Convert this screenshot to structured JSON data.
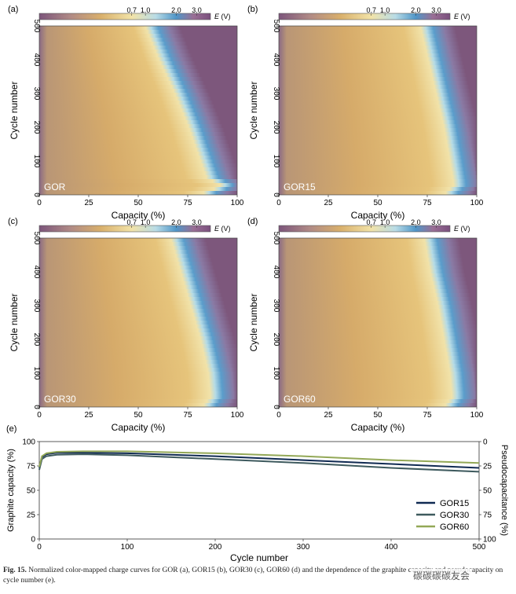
{
  "colormap": {
    "stops": [
      "#7c557b",
      "#b08a86",
      "#d9b06c",
      "#f2e3a8",
      "#b9dce6",
      "#4f96c8",
      "#9a6f95",
      "#7a4f7d"
    ],
    "tick_labels": [
      "0.7",
      "1.0",
      "2.0",
      "3.0"
    ],
    "label_var": "E",
    "label_unit": " (V)"
  },
  "chart_data": [
    {
      "id": "a",
      "type": "heatmap",
      "panel_label": "(a)",
      "tag": "GOR",
      "xlabel": "Capacity (%)",
      "ylabel": "Cycle number",
      "xlim": [
        0,
        100
      ],
      "ylim": [
        0,
        500
      ],
      "xticks": [
        "0",
        "25",
        "50",
        "75",
        "100"
      ],
      "yticks": [
        "0",
        "100",
        "200",
        "300",
        "400",
        "500"
      ],
      "capacity_vs_cycle": [
        [
          0,
          80
        ],
        [
          10,
          88
        ],
        [
          30,
          93
        ],
        [
          50,
          86
        ],
        [
          100,
          83
        ],
        [
          200,
          77
        ],
        [
          300,
          70
        ],
        [
          400,
          62
        ],
        [
          500,
          55
        ]
      ]
    },
    {
      "id": "b",
      "type": "heatmap",
      "panel_label": "(b)",
      "tag": "GOR15",
      "xlabel": "Capacity (%)",
      "ylabel": "Cycle number",
      "xlim": [
        0,
        100
      ],
      "ylim": [
        0,
        500
      ],
      "xticks": [
        "0",
        "25",
        "50",
        "75",
        "100"
      ],
      "yticks": [
        "0",
        "100",
        "200",
        "300",
        "400",
        "500"
      ],
      "capacity_vs_cycle": [
        [
          0,
          85
        ],
        [
          30,
          90
        ],
        [
          100,
          88
        ],
        [
          200,
          85
        ],
        [
          300,
          81
        ],
        [
          400,
          77
        ],
        [
          500,
          73
        ]
      ]
    },
    {
      "id": "c",
      "type": "heatmap",
      "panel_label": "(c)",
      "tag": "GOR30",
      "xlabel": "Capacity (%)",
      "ylabel": "Cycle number",
      "xlim": [
        0,
        100
      ],
      "ylim": [
        0,
        500
      ],
      "xticks": [
        "0",
        "25",
        "50",
        "75",
        "100"
      ],
      "yticks": [
        "0",
        "100",
        "200",
        "300",
        "400",
        "500"
      ],
      "capacity_vs_cycle": [
        [
          0,
          84
        ],
        [
          30,
          88
        ],
        [
          100,
          87
        ],
        [
          200,
          83
        ],
        [
          300,
          78
        ],
        [
          400,
          73
        ],
        [
          500,
          68
        ]
      ]
    },
    {
      "id": "d",
      "type": "heatmap",
      "panel_label": "(d)",
      "tag": "GOR60",
      "xlabel": "Capacity (%)",
      "ylabel": "Cycle number",
      "xlim": [
        0,
        100
      ],
      "ylim": [
        0,
        500
      ],
      "xticks": [
        "0",
        "25",
        "50",
        "75",
        "100"
      ],
      "yticks": [
        "0",
        "100",
        "200",
        "300",
        "400",
        "500"
      ],
      "capacity_vs_cycle": [
        [
          0,
          85
        ],
        [
          30,
          89
        ],
        [
          100,
          88
        ],
        [
          200,
          85
        ],
        [
          300,
          82
        ],
        [
          400,
          78
        ],
        [
          500,
          75
        ]
      ]
    },
    {
      "id": "e",
      "type": "line",
      "panel_label": "(e)",
      "xlabel": "Cycle number",
      "ylabel": "Graphite capacity (%)",
      "y2label": "Pseudocapacitance (%)",
      "xlim": [
        0,
        500
      ],
      "ylim": [
        0,
        100
      ],
      "y2lim": [
        0,
        100
      ],
      "y2_inverted": true,
      "xticks": [
        "0",
        "100",
        "200",
        "300",
        "400",
        "500"
      ],
      "yticks": [
        "0",
        "25",
        "50",
        "75",
        "100"
      ],
      "y2ticks": [
        "0",
        "25",
        "50",
        "75",
        "100"
      ],
      "legend_position": "bottom-right",
      "series": [
        {
          "name": "GOR15",
          "color": "#102a52",
          "points": [
            [
              0,
              73
            ],
            [
              3,
              84
            ],
            [
              8,
              87
            ],
            [
              20,
              88.5
            ],
            [
              50,
              88.5
            ],
            [
              100,
              88
            ],
            [
              200,
              85
            ],
            [
              300,
              81
            ],
            [
              400,
              77
            ],
            [
              500,
              73
            ]
          ]
        },
        {
          "name": "GOR30",
          "color": "#3e5a5e",
          "points": [
            [
              0,
              71
            ],
            [
              3,
              82
            ],
            [
              8,
              85
            ],
            [
              20,
              86.5
            ],
            [
              50,
              87
            ],
            [
              100,
              86
            ],
            [
              200,
              82
            ],
            [
              300,
              78
            ],
            [
              400,
              73
            ],
            [
              500,
              69
            ]
          ]
        },
        {
          "name": "GOR60",
          "color": "#93a857",
          "points": [
            [
              0,
              74
            ],
            [
              3,
              85
            ],
            [
              8,
              88
            ],
            [
              20,
              89.5
            ],
            [
              50,
              90
            ],
            [
              100,
              90
            ],
            [
              200,
              88
            ],
            [
              300,
              85
            ],
            [
              400,
              81
            ],
            [
              500,
              78
            ]
          ]
        }
      ]
    }
  ],
  "caption": {
    "label": "Fig. 15.",
    "text": " Normalized color-mapped charge curves for GOR (a), GOR15 (b), GOR30 (c), GOR60 (d) and the dependence of the graphite capacity and pseudocapacity on cycle number (e)."
  },
  "watermark": "碳碳碳碳友会"
}
